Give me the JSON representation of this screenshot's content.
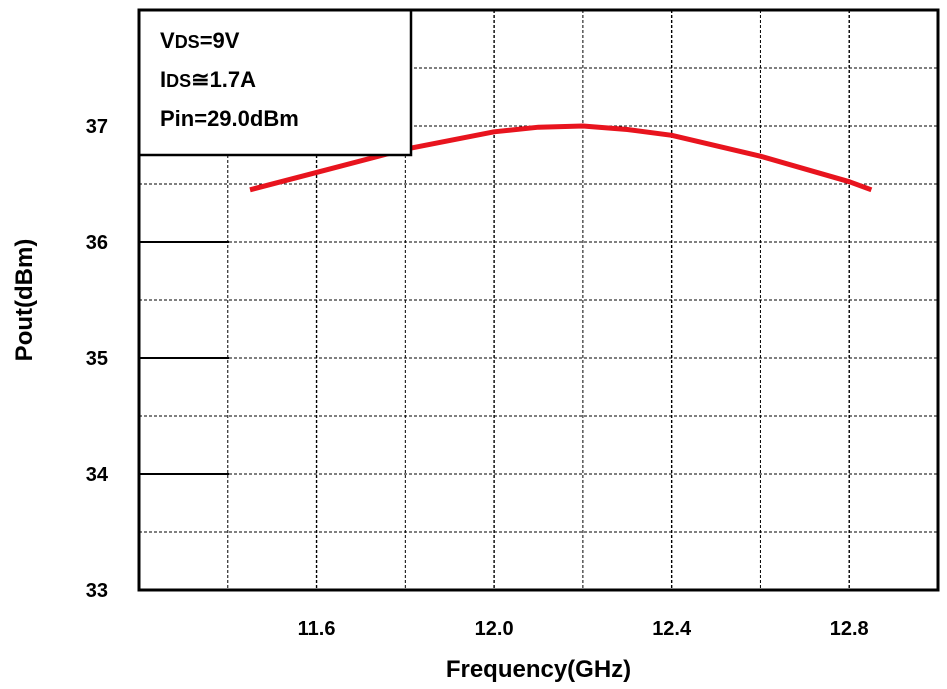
{
  "chart_data": {
    "type": "line",
    "title": "",
    "xlabel": "Frequency(GHz)",
    "ylabel": "Pout(dBm)",
    "xlim": [
      11.2,
      13.0
    ],
    "ylim": [
      33,
      38
    ],
    "xticks": [
      11.6,
      12.0,
      12.4,
      12.8
    ],
    "xtick_labels": [
      "11.6",
      "12.0",
      "12.4",
      "12.8"
    ],
    "yticks": [
      33,
      34,
      35,
      36,
      37
    ],
    "ytick_labels": [
      "33",
      "34",
      "35",
      "36",
      "37"
    ],
    "grid": true,
    "annotation": {
      "lines": [
        {
          "main": "V",
          "sub": "DS",
          "rest": "=9V"
        },
        {
          "main": "I",
          "sub": "DS",
          "rest": "≅1.7A"
        },
        {
          "main": "Pin=29.0dBm",
          "sub": "",
          "rest": ""
        }
      ],
      "placement": "top-left"
    },
    "series": [
      {
        "color": "#e8141e",
        "x": [
          11.45,
          11.6,
          11.8,
          12.0,
          12.1,
          12.2,
          12.3,
          12.4,
          12.6,
          12.8,
          12.85
        ],
        "values": [
          36.45,
          36.6,
          36.8,
          36.95,
          36.99,
          37.0,
          36.97,
          36.92,
          36.74,
          36.52,
          36.45
        ]
      }
    ]
  }
}
